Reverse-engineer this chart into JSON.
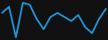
{
  "values": [
    3,
    6,
    -9,
    8,
    7,
    0,
    -5,
    1,
    3,
    1,
    -1,
    2,
    -4,
    -7,
    0,
    5
  ],
  "line_color": "#2196d9",
  "line_width": 1.4,
  "background_color": "#111111"
}
